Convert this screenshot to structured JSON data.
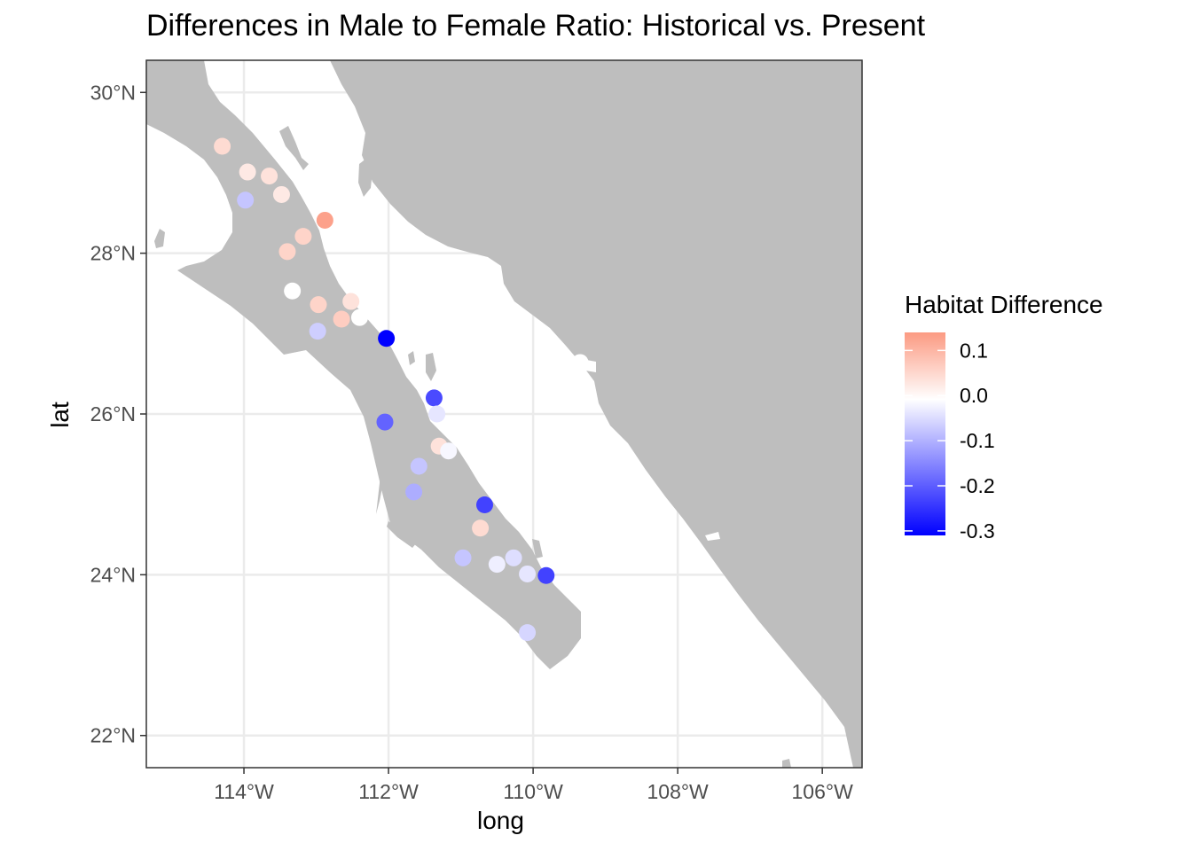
{
  "chart_data": {
    "type": "scatter",
    "title": "Differences in Male to Female Ratio: Historical vs. Present",
    "xlabel": "long",
    "ylabel": "lat",
    "xlim": [
      -115.35,
      -105.45
    ],
    "ylim": [
      21.6,
      30.4
    ],
    "x_ticks": [
      {
        "value": -114,
        "label": "114°W"
      },
      {
        "value": -112,
        "label": "112°W"
      },
      {
        "value": -110,
        "label": "110°W"
      },
      {
        "value": -108,
        "label": "108°W"
      },
      {
        "value": -106,
        "label": "106°W"
      }
    ],
    "y_ticks": [
      {
        "value": 30,
        "label": "30°N"
      },
      {
        "value": 28,
        "label": "28°N"
      },
      {
        "value": 26,
        "label": "26°N"
      },
      {
        "value": 24,
        "label": "24°N"
      },
      {
        "value": 22,
        "label": "22°N"
      }
    ],
    "grid": true,
    "legend": {
      "title": "Habitat Difference",
      "position": "right",
      "ticks": [
        0.1,
        0.0,
        -0.1,
        -0.2,
        -0.3
      ],
      "tick_labels": [
        "0.1",
        "0.0",
        "-0.1",
        "-0.2",
        "-0.3"
      ],
      "range": [
        -0.31,
        0.14
      ],
      "low_color": "#0000ff",
      "mid_color": "#ffffff",
      "high_color": "#fc9a82"
    },
    "colors": {
      "land": "#bebebe",
      "water": "#ffffff",
      "grid": "#ebebeb",
      "border": "#333333"
    },
    "points": [
      {
        "long": -114.3,
        "lat": 29.33,
        "value": 0.05
      },
      {
        "long": -113.95,
        "lat": 29.01,
        "value": 0.03
      },
      {
        "long": -113.65,
        "lat": 28.96,
        "value": 0.04
      },
      {
        "long": -113.48,
        "lat": 28.73,
        "value": 0.03
      },
      {
        "long": -113.98,
        "lat": 28.66,
        "value": -0.07
      },
      {
        "long": -112.88,
        "lat": 28.41,
        "value": 0.13
      },
      {
        "long": -113.18,
        "lat": 28.21,
        "value": 0.06
      },
      {
        "long": -113.4,
        "lat": 28.02,
        "value": 0.06
      },
      {
        "long": -113.33,
        "lat": 27.53,
        "value": 0.0
      },
      {
        "long": -112.52,
        "lat": 27.4,
        "value": 0.04
      },
      {
        "long": -112.97,
        "lat": 27.36,
        "value": 0.06
      },
      {
        "long": -112.4,
        "lat": 27.2,
        "value": 0.0
      },
      {
        "long": -112.65,
        "lat": 27.18,
        "value": 0.07
      },
      {
        "long": -112.98,
        "lat": 27.03,
        "value": -0.06
      },
      {
        "long": -112.03,
        "lat": 26.94,
        "value": -0.31
      },
      {
        "long": -111.37,
        "lat": 26.2,
        "value": -0.22
      },
      {
        "long": -111.33,
        "lat": 26.0,
        "value": -0.03
      },
      {
        "long": -112.05,
        "lat": 25.9,
        "value": -0.19
      },
      {
        "long": -111.3,
        "lat": 25.6,
        "value": 0.04
      },
      {
        "long": -111.17,
        "lat": 25.54,
        "value": -0.01
      },
      {
        "long": -111.58,
        "lat": 25.35,
        "value": -0.07
      },
      {
        "long": -111.65,
        "lat": 25.03,
        "value": -0.1
      },
      {
        "long": -110.67,
        "lat": 24.87,
        "value": -0.23
      },
      {
        "long": -110.73,
        "lat": 24.58,
        "value": 0.05
      },
      {
        "long": -110.97,
        "lat": 24.21,
        "value": -0.07
      },
      {
        "long": -110.5,
        "lat": 24.13,
        "value": -0.02
      },
      {
        "long": -110.27,
        "lat": 24.21,
        "value": -0.04
      },
      {
        "long": -110.08,
        "lat": 24.01,
        "value": -0.03
      },
      {
        "long": -109.82,
        "lat": 23.99,
        "value": -0.23
      },
      {
        "long": -110.08,
        "lat": 23.28,
        "value": -0.05
      },
      {
        "long": -109.35,
        "lat": 26.64,
        "value": 0.0
      }
    ]
  }
}
